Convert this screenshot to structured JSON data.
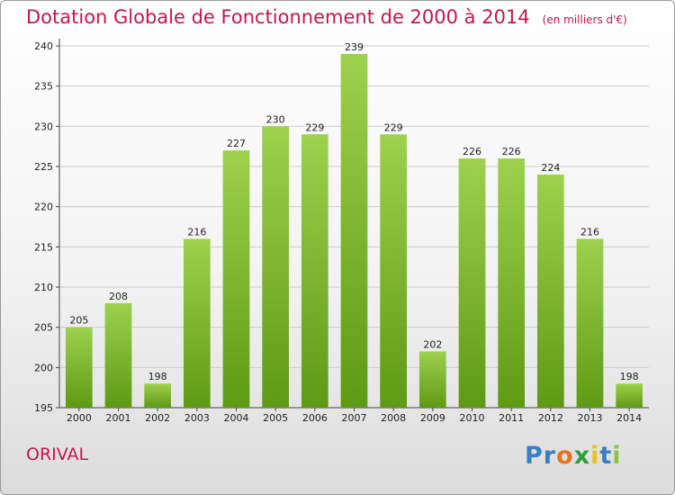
{
  "header": {
    "title": "Dotation Globale de Fonctionnement de 2000 à 2014",
    "unit": "(en milliers d'€)"
  },
  "footer": {
    "commune": "ORIVAL",
    "logo_text": "Proxiti",
    "logo_colors": [
      "#3a7fc4",
      "#3a7fc4",
      "#e8741c",
      "#2e9e3f",
      "#e8c41c",
      "#3a7fc4",
      "#8dc63f"
    ]
  },
  "colors": {
    "title": "#c4164f",
    "bar_top": "#9ed14d",
    "bar_bottom": "#5e9a14",
    "grid": "#cccccc"
  },
  "chart_data": {
    "type": "bar",
    "title": "Dotation Globale de Fonctionnement de 2000 à 2014",
    "subtitle": "(en milliers d'€)",
    "xlabel": "",
    "ylabel": "",
    "categories": [
      "2000",
      "2001",
      "2002",
      "2003",
      "2004",
      "2005",
      "2006",
      "2007",
      "2008",
      "2009",
      "2010",
      "2011",
      "2012",
      "2013",
      "2014"
    ],
    "values": [
      205,
      208,
      198,
      216,
      227,
      230,
      229,
      239,
      229,
      202,
      226,
      226,
      224,
      216,
      198
    ],
    "ylim": [
      195,
      240
    ],
    "yticks": [
      195,
      200,
      205,
      210,
      215,
      220,
      225,
      230,
      235,
      240
    ],
    "grid": true,
    "legend": "none"
  }
}
